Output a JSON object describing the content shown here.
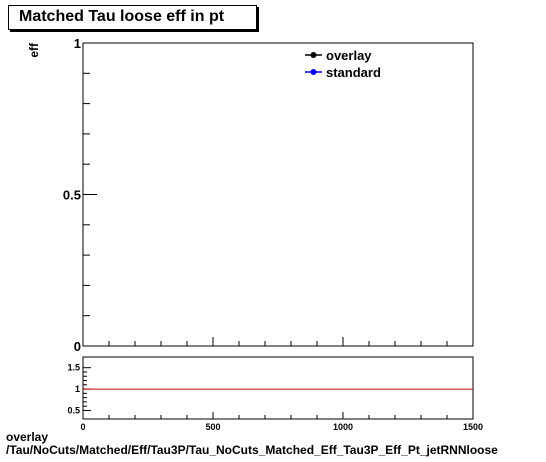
{
  "page": {
    "footer_line1": "overlay",
    "footer_line2": "/Tau/NoCuts/Matched/Eff/Tau3P/Tau_NoCuts_Matched_Eff_Tau3P_Eff_Pt_jetRNNloose"
  },
  "chart_data": [
    {
      "type": "line",
      "title": "Matched Tau loose eff in pt",
      "ylabel": "eff",
      "xlabel": "",
      "xlim": [
        0,
        1500
      ],
      "ylim": [
        0,
        1
      ],
      "y_ticks": [
        "0",
        "0.5",
        "1"
      ],
      "legend_position": "top-right",
      "series": [
        {
          "name": "overlay",
          "color": "#000000",
          "x": [],
          "y": []
        },
        {
          "name": "standard",
          "color": "#0000ff",
          "x": [],
          "y": []
        }
      ]
    },
    {
      "type": "line",
      "xlim": [
        0,
        1500
      ],
      "ylim": [
        0.3,
        1.75
      ],
      "x_ticks": [
        "0",
        "500",
        "1000",
        "1500"
      ],
      "y_ticks": [
        "0.5",
        "1",
        "1.5"
      ],
      "reference_line": {
        "y": 1,
        "color": "#cc0000"
      }
    }
  ]
}
